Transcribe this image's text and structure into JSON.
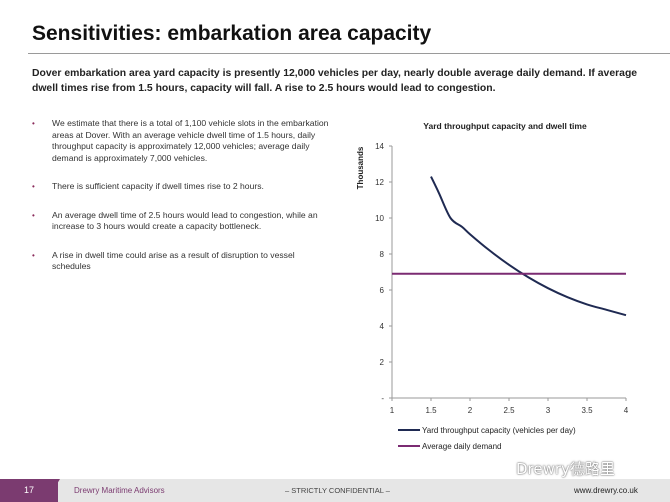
{
  "slide": {
    "title": "Sensitivities: embarkation area capacity",
    "lead": "Dover embarkation area yard capacity is presently 12,000 vehicles per day, nearly double average daily demand. If average dwell times rise from 1.5 hours, capacity will fall. A rise to 2.5 hours would lead to congestion.",
    "bullets": [
      "We estimate that there is a total of 1,100 vehicle slots in the embarkation areas at Dover. With an average vehicle dwell time of 1.5 hours, daily throughput capacity is approximately 12,000 vehicles; average daily demand is approximately 7,000 vehicles.",
      "There is sufficient capacity if dwell times rise to 2 hours.",
      "An average dwell time of 2.5 hours would lead to congestion, while an increase to 3 hours would create a capacity bottleneck.",
      "A rise in dwell time could arise as a result of disruption to vessel schedules"
    ],
    "bullet_symbol": "•"
  },
  "footer": {
    "page_number": "17",
    "company": "Drewry Maritime Advisors",
    "confidential": "– STRICTLY CONFIDENTIAL –",
    "url": "www.drewry.co.uk",
    "watermark": "Drewry德路里"
  },
  "colors": {
    "capacity_line": "#1f2a52",
    "demand_line": "#7b2b72",
    "footer_accent": "#7b3b70"
  },
  "chart_data": {
    "type": "line",
    "title": "Yard throughput capacity and dwell time",
    "ylabel": "Thousands",
    "xlabel": "",
    "xlim": [
      1,
      4
    ],
    "ylim": [
      0,
      14
    ],
    "x_ticks": [
      "1",
      "1.5",
      "2",
      "2.5",
      "3",
      "3.5",
      "4"
    ],
    "y_ticks": [
      "-",
      "2",
      "4",
      "6",
      "8",
      "10",
      "12",
      "14"
    ],
    "grid": false,
    "legend_position": "bottom",
    "series": [
      {
        "name": "Yard throughput capacity (vehicles per day)",
        "x": [
          1.5,
          1.6,
          1.75,
          1.9,
          2.0,
          2.25,
          2.5,
          2.75,
          3.0,
          3.25,
          3.5,
          3.75,
          4.0
        ],
        "values": [
          12.3,
          11.4,
          10.0,
          9.5,
          9.1,
          8.2,
          7.4,
          6.7,
          6.1,
          5.6,
          5.2,
          4.9,
          4.6
        ]
      },
      {
        "name": "Average daily demand",
        "x": [
          1,
          4
        ],
        "values": [
          6.9,
          6.9
        ]
      }
    ]
  }
}
